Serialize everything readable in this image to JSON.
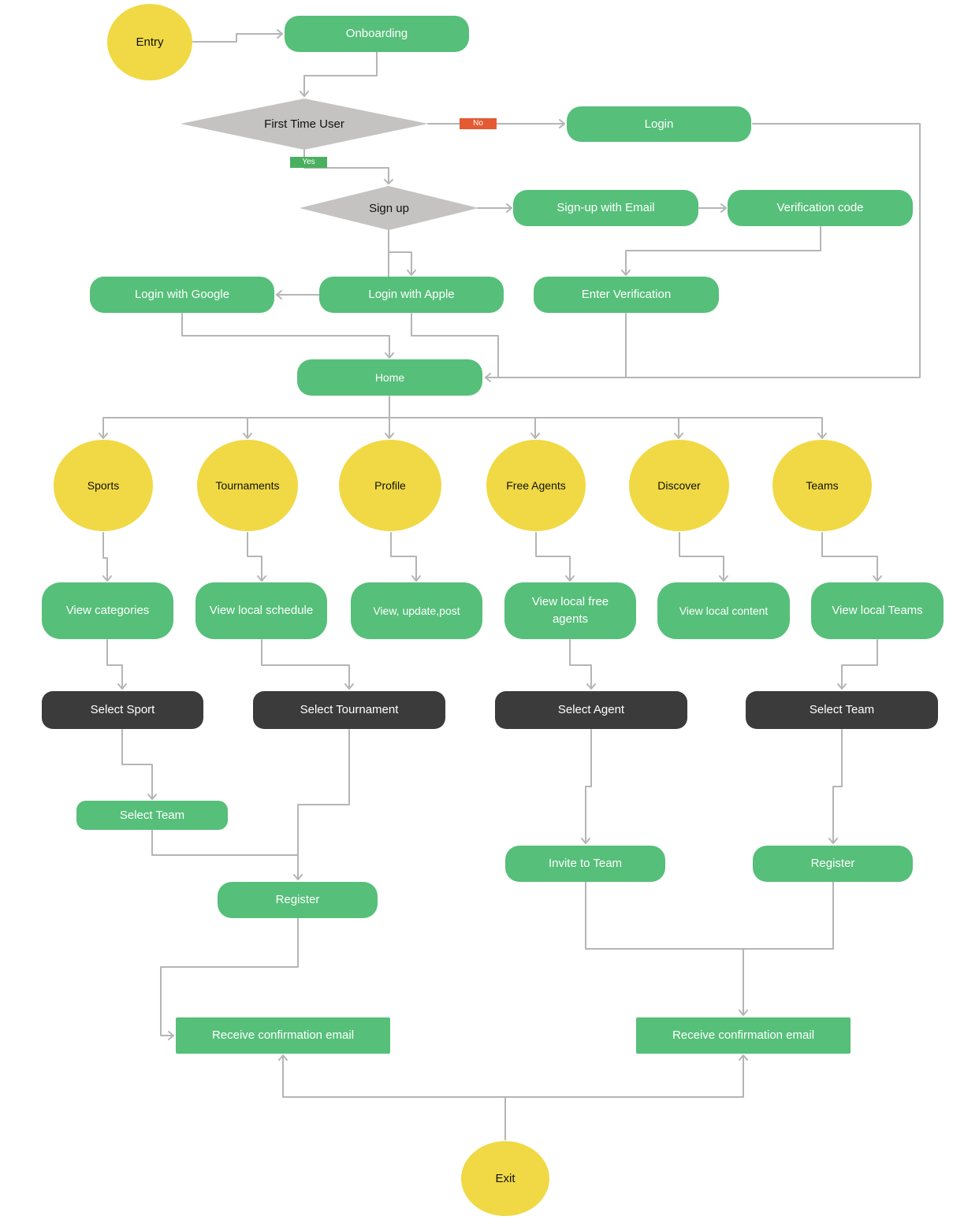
{
  "colors": {
    "green": "#56bf79",
    "yellow": "#f0d944",
    "dark": "#3b3b3b",
    "gray": "#c4c3c1",
    "edge": "#b5b5b5",
    "no": "#e45a32",
    "yes": "#4ab060"
  },
  "nodes": {
    "entry": "Entry",
    "onboarding": "Onboarding",
    "first_time_user": "First Time User",
    "no": "No",
    "yes": "Yes",
    "login": "Login",
    "sign_up": "Sign up",
    "sign_up_email": "Sign-up with Email",
    "verification_code": "Verification code",
    "login_google": "Login with Google",
    "login_apple": "Login with Apple",
    "enter_verification": "Enter Verification",
    "home": "Home",
    "sports": "Sports",
    "tournaments": "Tournaments",
    "profile": "Profile",
    "free_agents": "Free Agents",
    "discover": "Discover",
    "teams": "Teams",
    "view_categories": "View categories",
    "view_local_schedule": "View local schedule",
    "view_update_post": "View, update,post",
    "view_local_free_agents": "View local free agents",
    "view_local_content": "View local content",
    "view_local_teams": "View local Teams",
    "select_sport": "Select Sport",
    "select_tournament": "Select Tournament",
    "select_agent": "Select Agent",
    "select_team_dark": "Select Team",
    "select_team_green": "Select Team",
    "invite_to_team": "Invite to Team",
    "register_right": "Register",
    "register_left": "Register",
    "confirm_left": "Receive confirmation email",
    "confirm_right": "Receive confirmation email",
    "exit": "Exit"
  }
}
